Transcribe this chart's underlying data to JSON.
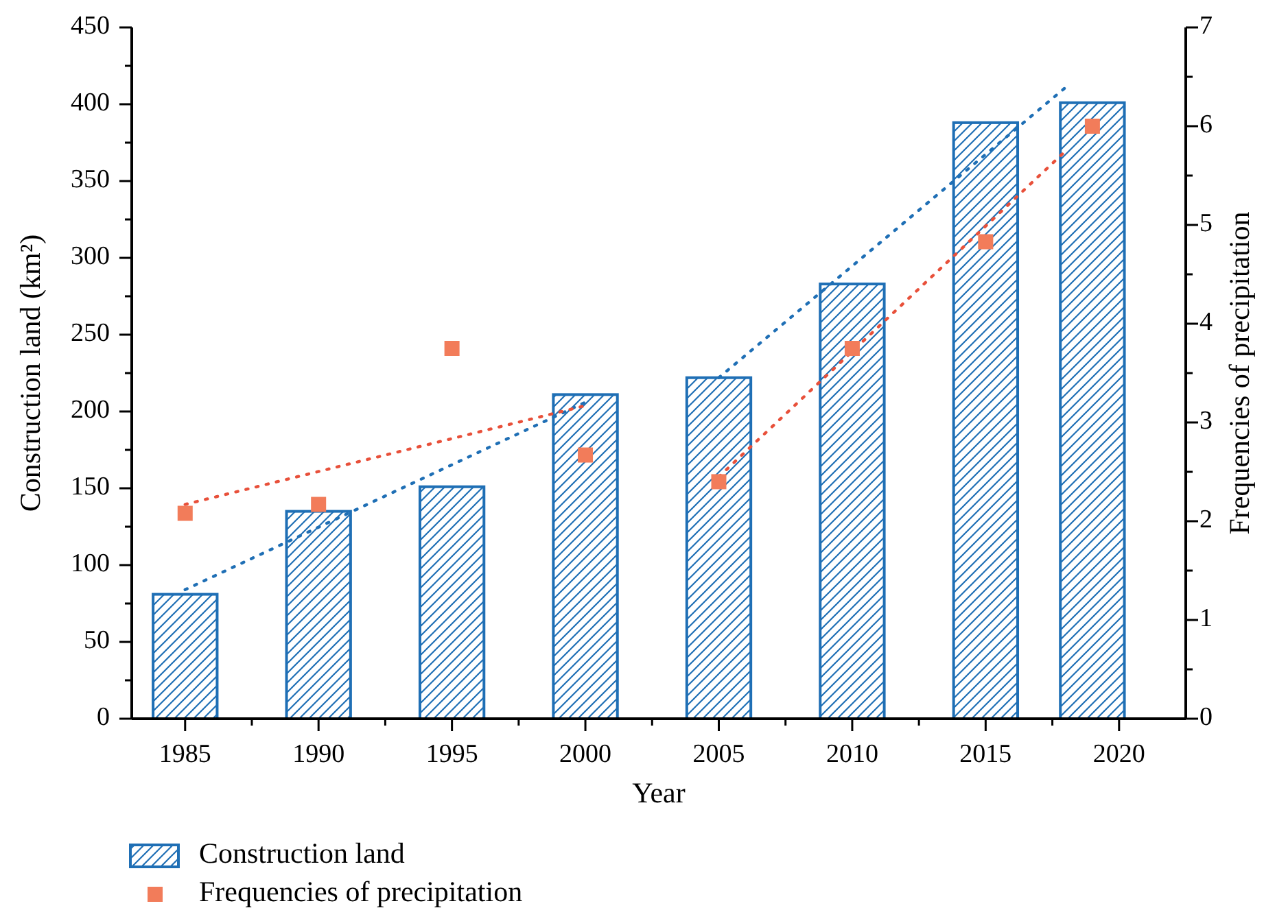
{
  "chart_data": {
    "type": "bar",
    "x": [
      1985,
      1990,
      1995,
      2000,
      2005,
      2010,
      2015,
      2019
    ],
    "xlabel": "Year",
    "ylabel": "Construction land (km²)",
    "y2label": "Frequencies of precipitation",
    "xlim": [
      1983,
      2022.5
    ],
    "xticks": [
      1985,
      {
        "value": 1987.5,
        "label": null
      },
      1990,
      {
        "value": 1992.5,
        "label": null
      },
      1995,
      {
        "value": 1997.5,
        "label": null
      },
      2000,
      {
        "value": 2002.5,
        "label": null
      },
      2005,
      {
        "value": 2007.5,
        "label": null
      },
      2010,
      {
        "value": 2012.5,
        "label": null
      },
      2015,
      {
        "value": 2017.5,
        "label": null
      },
      2020
    ],
    "ylim": [
      0,
      450
    ],
    "yticks": [
      0,
      {
        "value": 25,
        "label": null
      },
      50,
      {
        "value": 75,
        "label": null
      },
      100,
      {
        "value": 125,
        "label": null
      },
      150,
      {
        "value": 175,
        "label": null
      },
      200,
      {
        "value": 225,
        "label": null
      },
      250,
      {
        "value": 275,
        "label": null
      },
      300,
      {
        "value": 325,
        "label": null
      },
      350,
      {
        "value": 375,
        "label": null
      },
      400,
      {
        "value": 425,
        "label": null
      },
      450
    ],
    "y2lim": [
      0,
      7
    ],
    "y2ticks": [
      0,
      {
        "value": 0.5,
        "label": null
      },
      1,
      {
        "value": 1.5,
        "label": null
      },
      2,
      {
        "value": 2.5,
        "label": null
      },
      3,
      {
        "value": 3.5,
        "label": null
      },
      4,
      {
        "value": 4.5,
        "label": null
      },
      5,
      {
        "value": 5.5,
        "label": null
      },
      6,
      {
        "value": 6.5,
        "label": null
      },
      7
    ],
    "grid": false,
    "legend": "bottom",
    "series": [
      {
        "name": "Construction land",
        "color": "#1f6fb5",
        "values": [
          81,
          135,
          151,
          211,
          222,
          283,
          388,
          401
        ]
      },
      {
        "type": "line",
        "x": [
          1985,
          2000
        ],
        "color": "#1f6fb5",
        "line_style": "dotted",
        "values": [
          84,
          206
        ]
      },
      {
        "type": "line",
        "x": [
          2005,
          2018
        ],
        "color": "#1f6fb5",
        "line_style": "dotted",
        "values": [
          222,
          411
        ]
      },
      {
        "type": "line",
        "axis": "y2",
        "x": [
          1985,
          2000
        ],
        "color": "#e8503a",
        "line_style": "dotted",
        "values": [
          2.17,
          3.17
        ]
      },
      {
        "type": "line",
        "axis": "y2",
        "x": [
          2005,
          2018
        ],
        "color": "#e8503a",
        "line_style": "dotted",
        "values": [
          2.45,
          5.75
        ]
      },
      {
        "name": "Frequencies of precipitation",
        "type": "scatter",
        "axis": "y2",
        "color": "#f27c5a",
        "marker": "square",
        "values": [
          2.08,
          2.17,
          3.75,
          2.67,
          2.4,
          3.75,
          4.83,
          6.0
        ]
      }
    ]
  }
}
